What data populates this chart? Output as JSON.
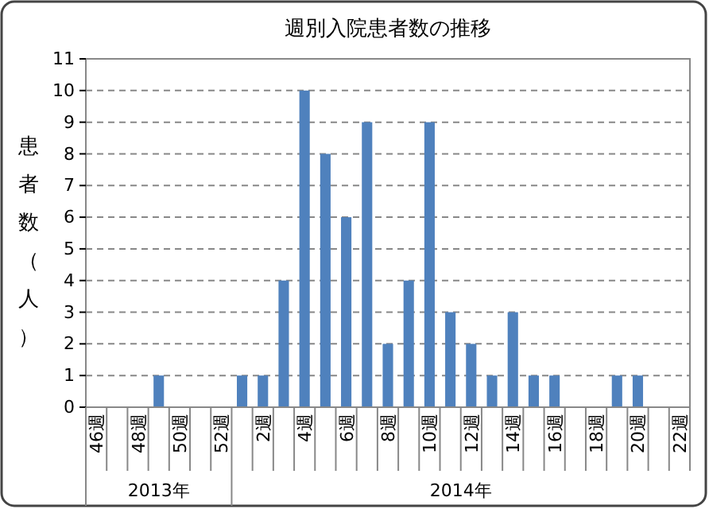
{
  "chart_data": {
    "type": "bar",
    "title": "週別入院患者数の推移",
    "ylabel": "患者数（人）",
    "categories": [
      "46週",
      null,
      "48週",
      null,
      "50週",
      null,
      "52週",
      null,
      "2週",
      null,
      "4週",
      null,
      "6週",
      null,
      "8週",
      null,
      "10週",
      null,
      "12週",
      null,
      "14週",
      null,
      "16週",
      null,
      "18週",
      null,
      "20週",
      null,
      "22週"
    ],
    "values": [
      0,
      0,
      0,
      1,
      0,
      0,
      0,
      1,
      1,
      4,
      10,
      8,
      6,
      9,
      2,
      4,
      9,
      3,
      2,
      1,
      3,
      1,
      1,
      0,
      0,
      1,
      1,
      0,
      0
    ],
    "color": "#4f81bd",
    "ylim": [
      0,
      11
    ],
    "yticks": [
      0,
      1,
      2,
      3,
      4,
      5,
      6,
      7,
      8,
      9,
      10,
      11
    ],
    "grid": "y",
    "annotations": [
      "2013年",
      "2014年"
    ]
  }
}
